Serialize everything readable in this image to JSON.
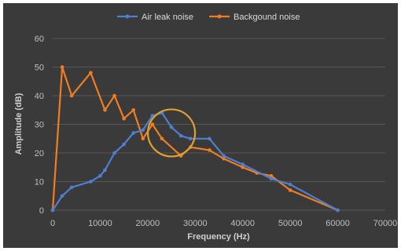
{
  "colors": {
    "background": "#3a3a3a",
    "grid": "#575757",
    "air_leak": "#4f7fd0",
    "background_noise": "#f07d24",
    "circle": "#e0a030"
  },
  "chart_data": {
    "type": "line",
    "title": "",
    "xlabel": "Frequency (Hz)",
    "ylabel": "Amplitude (dB)",
    "xlim": [
      0,
      70000
    ],
    "ylim": [
      0,
      60
    ],
    "xticks": [
      0,
      10000,
      20000,
      30000,
      40000,
      50000,
      60000,
      70000
    ],
    "yticks": [
      0,
      10,
      20,
      30,
      40,
      50,
      60
    ],
    "grid": "horizontal",
    "legend_position": "top-center",
    "series": [
      {
        "name": "Air leak noise",
        "color": "#4f7fd0",
        "points": [
          [
            0,
            0
          ],
          [
            2000,
            5
          ],
          [
            4000,
            8
          ],
          [
            8000,
            10
          ],
          [
            10000,
            12
          ],
          [
            11000,
            14
          ],
          [
            13000,
            20
          ],
          [
            15000,
            23
          ],
          [
            17000,
            27
          ],
          [
            19000,
            28
          ],
          [
            21000,
            33
          ],
          [
            23000,
            34
          ],
          [
            25000,
            29
          ],
          [
            27000,
            26
          ],
          [
            29000,
            25
          ],
          [
            33000,
            25
          ],
          [
            36000,
            19
          ],
          [
            40000,
            16
          ],
          [
            46000,
            11
          ],
          [
            50000,
            9
          ],
          [
            60000,
            0
          ]
        ]
      },
      {
        "name": "Backgound noise",
        "color": "#f07d24",
        "points": [
          [
            0,
            0
          ],
          [
            2000,
            50
          ],
          [
            4000,
            40
          ],
          [
            8000,
            48
          ],
          [
            11000,
            35
          ],
          [
            13000,
            40
          ],
          [
            15000,
            32
          ],
          [
            17000,
            35
          ],
          [
            19000,
            25
          ],
          [
            21000,
            30
          ],
          [
            23000,
            25
          ],
          [
            27000,
            19
          ],
          [
            29000,
            22
          ],
          [
            33000,
            21
          ],
          [
            36000,
            18
          ],
          [
            40000,
            15
          ],
          [
            43000,
            13
          ],
          [
            46000,
            12
          ],
          [
            50000,
            7
          ],
          [
            60000,
            0
          ]
        ]
      }
    ],
    "annotations": [
      {
        "type": "circle",
        "x": 25000,
        "y": 27,
        "color": "#e0a030"
      }
    ]
  }
}
